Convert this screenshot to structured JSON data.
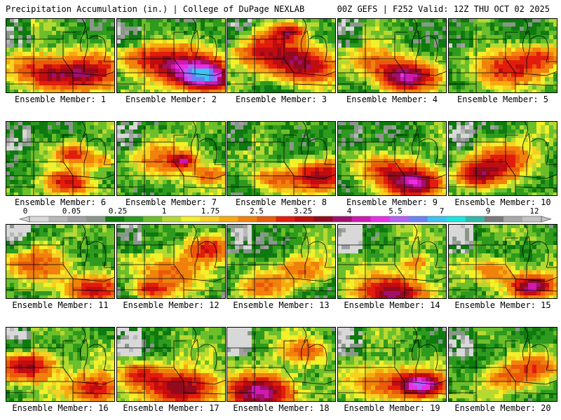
{
  "header": {
    "product": "Precipitation Accumulation (in.) | College of DuPage NEXLAB",
    "run_info": "00Z GEFS | F252 Valid: 12Z THU OCT 02 2025"
  },
  "members": [
    {
      "label": "Ensemble Member: 1",
      "hotspots": [
        [
          0.4,
          0.75,
          0.5,
          2.5
        ],
        [
          0.75,
          0.7,
          0.6,
          3.0
        ],
        [
          0.2,
          0.6,
          0.5,
          1.6
        ]
      ]
    },
    {
      "label": "Ensemble Member: 2",
      "hotspots": [
        [
          0.8,
          0.75,
          0.5,
          5.5
        ],
        [
          0.55,
          0.6,
          0.6,
          3.0
        ],
        [
          0.2,
          0.5,
          0.5,
          2.0
        ]
      ]
    },
    {
      "label": "Ensemble Member: 3",
      "hotspots": [
        [
          0.7,
          0.6,
          0.6,
          3.5
        ],
        [
          0.3,
          0.4,
          0.6,
          2.5
        ],
        [
          0.55,
          0.15,
          0.3,
          3.0
        ]
      ]
    },
    {
      "label": "Ensemble Member: 4",
      "hotspots": [
        [
          0.6,
          0.75,
          0.5,
          4.5
        ],
        [
          0.3,
          0.55,
          0.5,
          1.5
        ]
      ]
    },
    {
      "label": "Ensemble Member: 5",
      "hotspots": [
        [
          0.5,
          0.65,
          0.6,
          2.5
        ],
        [
          0.85,
          0.5,
          0.4,
          2.0
        ]
      ]
    },
    {
      "label": "Ensemble Member: 6",
      "hotspots": [
        [
          0.55,
          0.8,
          0.4,
          3.0
        ],
        [
          0.6,
          0.4,
          0.3,
          2.5
        ],
        [
          0.85,
          0.5,
          0.3,
          1.6
        ]
      ]
    },
    {
      "label": "Ensemble Member: 7",
      "hotspots": [
        [
          0.5,
          0.5,
          0.6,
          1.75
        ],
        [
          0.6,
          0.5,
          0.2,
          3.0
        ],
        [
          0.85,
          0.7,
          0.3,
          2.0
        ]
      ]
    },
    {
      "label": "Ensemble Member: 8",
      "hotspots": [
        [
          0.85,
          0.7,
          0.5,
          3.5
        ],
        [
          0.4,
          0.75,
          0.4,
          1.8
        ]
      ]
    },
    {
      "label": "Ensemble Member: 9",
      "hotspots": [
        [
          0.7,
          0.8,
          0.5,
          4.5
        ],
        [
          0.4,
          0.6,
          0.5,
          2.0
        ]
      ]
    },
    {
      "label": "Ensemble Member: 10",
      "hotspots": [
        [
          0.5,
          0.5,
          0.6,
          2.5
        ],
        [
          0.25,
          0.7,
          0.4,
          2.8
        ]
      ]
    },
    {
      "label": "Ensemble Member: 11",
      "hotspots": [
        [
          0.8,
          0.85,
          0.5,
          3.0
        ],
        [
          0.3,
          0.5,
          0.6,
          1.8
        ]
      ]
    },
    {
      "label": "Ensemble Member: 12",
      "hotspots": [
        [
          0.8,
          0.3,
          0.4,
          2.8
        ],
        [
          0.5,
          0.6,
          0.6,
          2.0
        ],
        [
          0.3,
          0.85,
          0.3,
          2.5
        ]
      ]
    },
    {
      "label": "Ensemble Member: 13",
      "hotspots": [
        [
          0.7,
          0.6,
          0.5,
          1.8
        ],
        [
          0.3,
          0.8,
          0.4,
          1.6
        ]
      ]
    },
    {
      "label": "Ensemble Member: 14",
      "hotspots": [
        [
          0.5,
          0.9,
          0.6,
          4.0
        ],
        [
          0.7,
          0.5,
          0.3,
          1.6
        ]
      ]
    },
    {
      "label": "Ensemble Member: 15",
      "hotspots": [
        [
          0.75,
          0.8,
          0.4,
          4.5
        ],
        [
          0.4,
          0.6,
          0.4,
          1.8
        ]
      ]
    },
    {
      "label": "Ensemble Member: 16",
      "hotspots": [
        [
          0.2,
          0.5,
          0.5,
          3.5
        ],
        [
          0.8,
          0.8,
          0.5,
          3.0
        ]
      ]
    },
    {
      "label": "Ensemble Member: 17",
      "hotspots": [
        [
          0.6,
          0.8,
          0.6,
          4.0
        ],
        [
          0.2,
          0.6,
          0.4,
          2.5
        ]
      ]
    },
    {
      "label": "Ensemble Member: 18",
      "hotspots": [
        [
          0.3,
          0.85,
          0.6,
          4.5
        ],
        [
          0.7,
          0.3,
          0.4,
          2.0
        ]
      ]
    },
    {
      "label": "Ensemble Member: 19",
      "hotspots": [
        [
          0.75,
          0.75,
          0.4,
          5.0
        ],
        [
          0.4,
          0.7,
          0.6,
          2.2
        ]
      ]
    },
    {
      "label": "Ensemble Member: 20",
      "hotspots": [
        [
          0.5,
          0.65,
          0.5,
          1.8
        ],
        [
          0.8,
          0.5,
          0.4,
          1.7
        ]
      ]
    }
  ],
  "colorbar": {
    "labels": [
      "0",
      "0.05",
      "0.25",
      "1",
      "1.75",
      "2.5",
      "3.25",
      "4",
      "5.5",
      "7",
      "9",
      "12"
    ],
    "bins": [
      {
        "min": 0,
        "color": "#d8d8d8"
      },
      {
        "min": 0.01,
        "color": "#b8b8b8"
      },
      {
        "min": 0.05,
        "color": "#a0a0a0"
      },
      {
        "min": 0.1,
        "color": "#889888"
      },
      {
        "min": 0.25,
        "color": "#0f7a0f"
      },
      {
        "min": 0.5,
        "color": "#2e9a1e"
      },
      {
        "min": 0.75,
        "color": "#6cbf2a"
      },
      {
        "min": 1.0,
        "color": "#b6d931"
      },
      {
        "min": 1.25,
        "color": "#f2f028"
      },
      {
        "min": 1.5,
        "color": "#f8d021"
      },
      {
        "min": 1.75,
        "color": "#f7aa10"
      },
      {
        "min": 2.0,
        "color": "#f0820c"
      },
      {
        "min": 2.5,
        "color": "#ea5a0a"
      },
      {
        "min": 3.0,
        "color": "#e21d0d"
      },
      {
        "min": 3.5,
        "color": "#c10c10"
      },
      {
        "min": 4.0,
        "color": "#930a1e"
      },
      {
        "min": 4.5,
        "color": "#a1106e"
      },
      {
        "min": 5.0,
        "color": "#cf19b3"
      },
      {
        "min": 5.5,
        "color": "#e92fe6"
      },
      {
        "min": 6.0,
        "color": "#b55ff7"
      },
      {
        "min": 6.5,
        "color": "#6a82f4"
      },
      {
        "min": 7.0,
        "color": "#3cc4f2"
      },
      {
        "min": 8.0,
        "color": "#18e6e0"
      },
      {
        "min": 9.0,
        "color": "#30b8a8"
      },
      {
        "min": 10.0,
        "color": "#7a7a7a"
      },
      {
        "min": 11.0,
        "color": "#a8a8a8"
      },
      {
        "min": 12.0,
        "color": "#c4c4c4"
      }
    ]
  }
}
